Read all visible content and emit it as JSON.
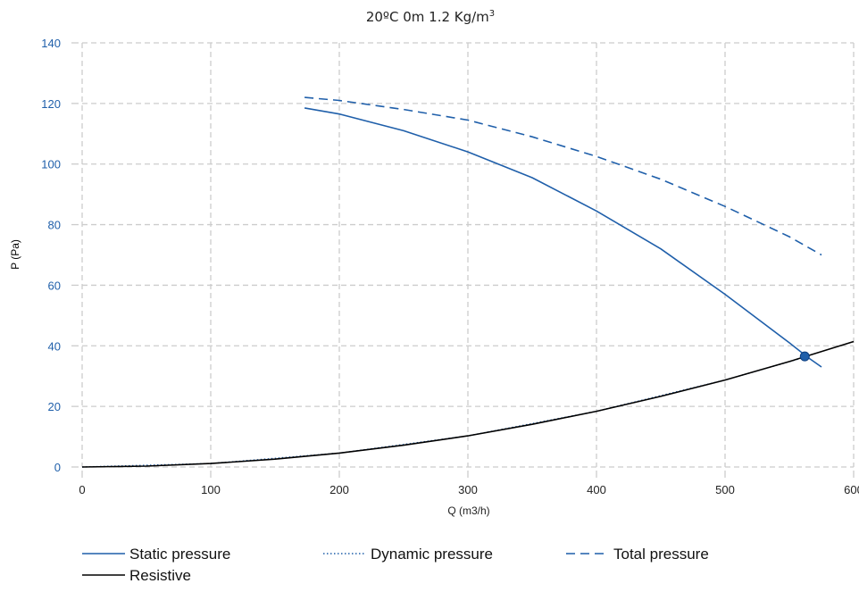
{
  "chart_data": {
    "type": "line",
    "title": "20ºC 0m 1.2 Kg/m",
    "title_superscript": "3",
    "xlabel": "Q (m3/h)",
    "ylabel": "P (Pa)",
    "xlim": [
      0,
      600
    ],
    "ylim": [
      0,
      140
    ],
    "xticks": [
      0,
      100,
      200,
      300,
      400,
      500,
      600
    ],
    "yticks": [
      0,
      20,
      40,
      60,
      80,
      100,
      120,
      140
    ],
    "grid": true,
    "legend_position": "bottom",
    "colors": {
      "blue": "#1f5faa",
      "black": "#000000",
      "axis_text": "#1f5faa",
      "grid": "#cccccc"
    },
    "series": [
      {
        "name": "Static pressure",
        "style": "solid",
        "color": "#1f5faa",
        "x": [
          173,
          200,
          250,
          300,
          350,
          400,
          450,
          500,
          550,
          565,
          575
        ],
        "y": [
          118.5,
          116.5,
          111,
          104,
          95.5,
          84.5,
          72,
          57,
          41,
          36,
          33
        ]
      },
      {
        "name": "Dynamic pressure",
        "style": "dotted",
        "color": "#1f5faa",
        "x": [
          0,
          100,
          200,
          300,
          400,
          500,
          565
        ],
        "y": [
          0,
          1.15,
          4.6,
          10.3,
          18.4,
          28.7,
          36.6
        ]
      },
      {
        "name": "Total pressure",
        "style": "dashed",
        "color": "#1f5faa",
        "x": [
          173,
          200,
          250,
          300,
          350,
          400,
          450,
          500,
          550,
          575
        ],
        "y": [
          122,
          121,
          118,
          114.5,
          109,
          102.5,
          95,
          86,
          76,
          70
        ]
      },
      {
        "name": "Resistive",
        "style": "solid",
        "color": "#000000",
        "x": [
          0,
          50,
          100,
          150,
          200,
          250,
          300,
          350,
          400,
          450,
          500,
          550,
          600
        ],
        "y": [
          0,
          0.29,
          1.15,
          2.6,
          4.6,
          7.2,
          10.3,
          14.1,
          18.4,
          23.3,
          28.7,
          34.8,
          41.4
        ]
      }
    ],
    "operating_point": {
      "x": 562,
      "y": 36.5
    }
  }
}
